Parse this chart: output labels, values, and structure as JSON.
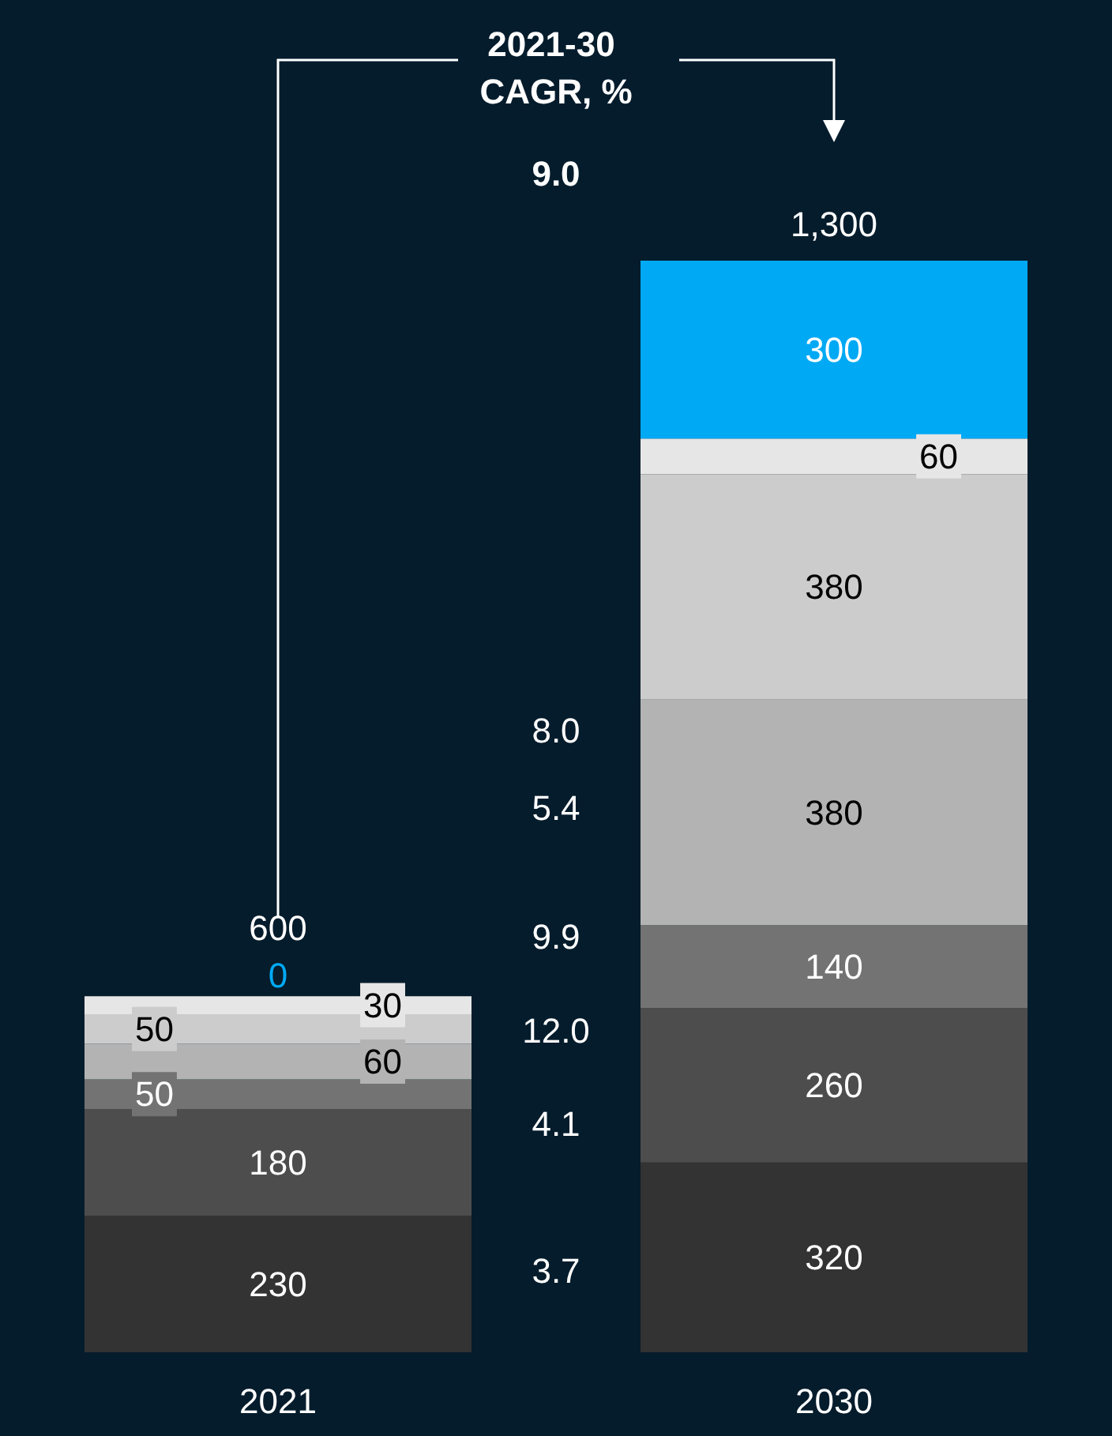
{
  "chart_data": {
    "type": "bar",
    "stacked": true,
    "title": "2021-30 CAGR, %",
    "categories": [
      "2021",
      "2030"
    ],
    "series": [
      {
        "color": "#333333",
        "values": [
          230,
          320
        ]
      },
      {
        "color": "#4d4d4d",
        "values": [
          180,
          260
        ]
      },
      {
        "color": "#737373",
        "values": [
          50,
          140
        ]
      },
      {
        "color": "#b3b3b3",
        "values": [
          60,
          380
        ]
      },
      {
        "color": "#cccccc",
        "values": [
          50,
          380
        ]
      },
      {
        "color": "#e6e6e6",
        "values": [
          30,
          60
        ]
      },
      {
        "color": "#00a9f4",
        "values": [
          0,
          300
        ]
      }
    ],
    "data_labels": true,
    "totals": [
      "600",
      null
    ],
    "annotations": [
      "9.0",
      "3.7",
      "4.1",
      "12.0",
      "9.9",
      "5.4",
      "8.0",
      {
        "text": "1,300",
        "x": "2030",
        "y": 1840
      }
    ]
  }
}
